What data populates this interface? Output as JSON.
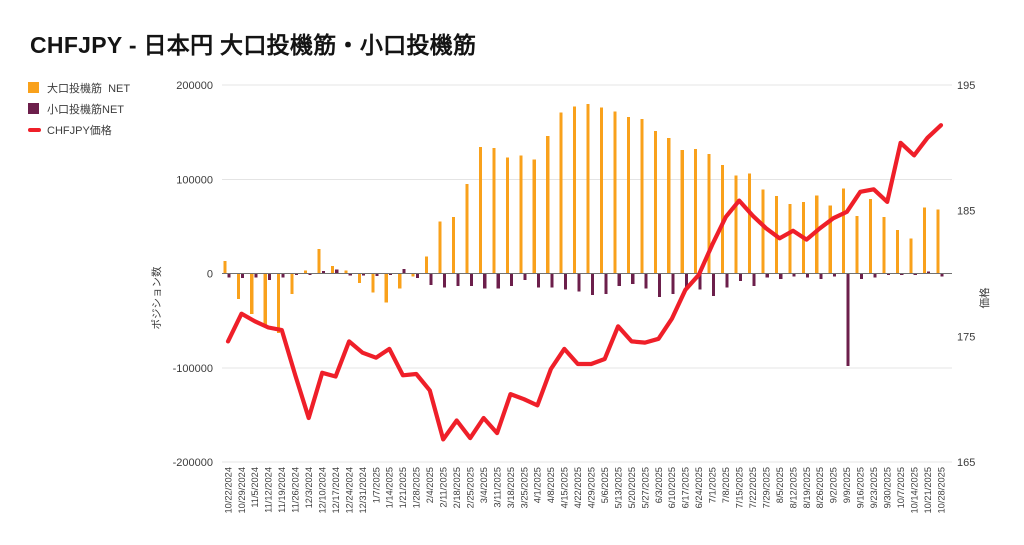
{
  "title": "CHFJPY - 日本円 大口投機筋・小口投機筋",
  "legend": {
    "items": [
      {
        "label": "大口投機筋  NET",
        "color": "#F9A11B",
        "swatch": "square"
      },
      {
        "label": "小口投機筋NET",
        "color": "#6C1F4B",
        "swatch": "square"
      },
      {
        "label": "CHFJPY価格",
        "color": "#EF1F29",
        "swatch": "line"
      }
    ]
  },
  "axes": {
    "left": {
      "title": "ポジション数",
      "ticks": [
        200000,
        100000,
        0,
        -100000,
        -200000
      ],
      "range": [
        -200000,
        200000
      ]
    },
    "right": {
      "title": "価格",
      "ticks": [
        195,
        185,
        175,
        165
      ],
      "range": [
        165,
        195
      ]
    }
  },
  "colors": {
    "large_net": "#F9A11B",
    "small_net": "#6C1F4B",
    "price_line": "#EF1F29",
    "gridline": "#E4E4E4",
    "zero_line": "#707070",
    "tick_text": "#3c3c3c",
    "title_text": "#141414"
  },
  "chart_data": {
    "type": "combo",
    "grid": "horizontal",
    "left_ylim": [
      -200000,
      200000
    ],
    "right_ylim": [
      165,
      195
    ],
    "legend_position": "top-left",
    "categories": [
      "10/22/2024",
      "10/29/2024",
      "11/5/2024",
      "11/12/2024",
      "11/19/2024",
      "11/26/2024",
      "12/3/2024",
      "12/10/2024",
      "12/17/2024",
      "12/24/2024",
      "12/31/2024",
      "1/7/2025",
      "1/14/2025",
      "1/21/2025",
      "1/28/2025",
      "2/4/2025",
      "2/11/2025",
      "2/18/2025",
      "2/25/2025",
      "3/4/2025",
      "3/11/2025",
      "3/18/2025",
      "3/25/2025",
      "4/1/2025",
      "4/8/2025",
      "4/15/2025",
      "4/22/2025",
      "4/29/2025",
      "5/6/2025",
      "5/13/2025",
      "5/20/2025",
      "5/27/2025",
      "6/3/2025",
      "6/10/2025",
      "6/17/2025",
      "6/24/2025",
      "7/1/2025",
      "7/8/2025",
      "7/15/2025",
      "7/22/2025",
      "7/29/2025",
      "8/5/2025",
      "8/12/2025",
      "8/19/2025",
      "8/26/2025",
      "9/2/2025",
      "9/9/2025",
      "9/16/2025",
      "9/23/2025",
      "9/30/2025",
      "10/7/2025",
      "10/14/2025",
      "10/21/2025",
      "10/28/2025"
    ],
    "series": [
      {
        "name": "大口投機筋  NET",
        "type": "bar",
        "axis": "left",
        "color": "#F9A11B",
        "values": [
          13000,
          -27000,
          -43000,
          -57000,
          -63000,
          -22000,
          3000,
          26000,
          8000,
          3000,
          -10000,
          -20000,
          -31000,
          -16000,
          -3000,
          18000,
          55000,
          60000,
          95000,
          134000,
          133000,
          123000,
          125000,
          121000,
          146000,
          171000,
          177000,
          180000,
          176000,
          172000,
          166000,
          164000,
          151000,
          144000,
          131000,
          132000,
          127000,
          115000,
          104000,
          106000,
          89000,
          82000,
          74000,
          76000,
          83000,
          72000,
          90000,
          61000,
          79000,
          60000,
          46000,
          37000,
          70000,
          68000
        ]
      },
      {
        "name": "小口投機筋NET",
        "type": "bar",
        "axis": "left",
        "color": "#6C1F4B",
        "values": [
          -4000,
          -5000,
          -4000,
          -7000,
          -4000,
          -1500,
          -1500,
          2500,
          4500,
          -2000,
          -2000,
          -2500,
          -1500,
          5000,
          -5000,
          -12000,
          -15000,
          -13000,
          -13000,
          -16000,
          -16000,
          -13000,
          -7000,
          -15000,
          -15000,
          -17000,
          -19000,
          -23000,
          -22000,
          -13000,
          -11000,
          -16000,
          -25000,
          -22000,
          -16000,
          -17000,
          -24000,
          -15000,
          -8000,
          -13000,
          -4000,
          -6000,
          -3000,
          -4000,
          -6000,
          -3000,
          -98000,
          -6000,
          -4000,
          -1500,
          -1500,
          -1500,
          2000,
          -3000
        ]
      },
      {
        "name": "CHFJPY価格",
        "type": "line",
        "axis": "right",
        "color": "#EF1F29",
        "values": [
          174.6,
          176.8,
          176.2,
          175.7,
          175.5,
          171.9,
          168.5,
          172.1,
          171.8,
          174.6,
          173.7,
          173.3,
          174.0,
          171.9,
          172.0,
          170.7,
          166.8,
          168.3,
          166.9,
          168.5,
          167.3,
          170.4,
          170.0,
          169.5,
          172.4,
          174.0,
          172.8,
          172.8,
          173.2,
          175.8,
          174.6,
          174.5,
          174.8,
          176.4,
          178.7,
          179.9,
          182.3,
          184.5,
          185.8,
          184.6,
          183.6,
          182.8,
          183.4,
          182.7,
          183.6,
          184.4,
          184.9,
          186.5,
          186.7,
          185.7,
          190.4,
          189.4,
          190.8,
          191.8
        ]
      }
    ]
  }
}
